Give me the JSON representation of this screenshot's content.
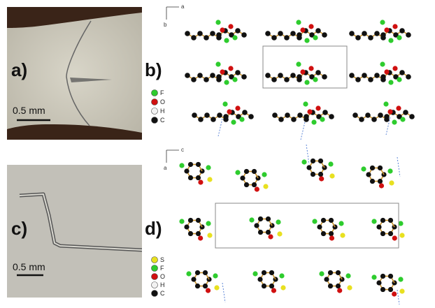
{
  "panels": {
    "a": {
      "label": "a)",
      "scale_bar": "0.5 mm"
    },
    "b": {
      "label": "b)",
      "axes": [
        "a",
        "b"
      ],
      "legend": [
        {
          "symbol": "F",
          "color": "#2ecc2e"
        },
        {
          "symbol": "O",
          "color": "#d01010"
        },
        {
          "symbol": "H",
          "color": "#f2f2f2"
        },
        {
          "symbol": "C",
          "color": "#111111"
        }
      ]
    },
    "c": {
      "label": "c)",
      "scale_bar": "0.5 mm"
    },
    "d": {
      "label": "d)",
      "axes": [
        "c",
        "a"
      ],
      "legend": [
        {
          "symbol": "S",
          "color": "#e8e020"
        },
        {
          "symbol": "F",
          "color": "#2ecc2e"
        },
        {
          "symbol": "O",
          "color": "#d01010"
        },
        {
          "symbol": "H",
          "color": "#f2f2f2"
        },
        {
          "symbol": "C",
          "color": "#111111"
        }
      ]
    }
  }
}
